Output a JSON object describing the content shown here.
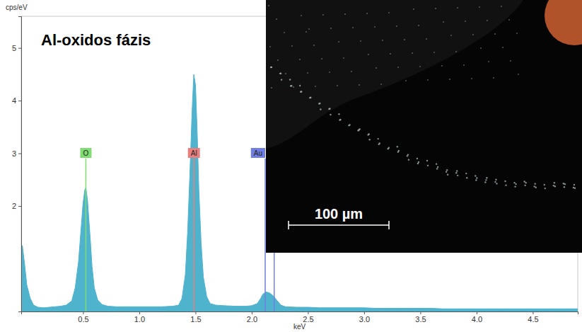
{
  "chart_data": {
    "type": "area",
    "title": "Al-oxidos fázis",
    "y_label": "cps/eV",
    "x_label": "keV",
    "color": "#4fb3ce",
    "grid": false,
    "xlim": [
      -0.05,
      4.9
    ],
    "ylim": [
      0,
      5.6
    ],
    "xticks": [
      0.5,
      {
        "value": 1,
        "label": "1.0"
      },
      1.5,
      {
        "value": 2,
        "label": "2.0"
      },
      2.5,
      {
        "value": 3,
        "label": "3.0"
      },
      3.5,
      {
        "value": 4,
        "label": "4.0"
      },
      4.5
    ],
    "yticks": [
      2,
      3,
      4,
      5
    ],
    "x": [
      -0.04,
      -0.02,
      0.0,
      0.03,
      0.06,
      0.1,
      0.15,
      0.2,
      0.25,
      0.3,
      0.35,
      0.4,
      0.43,
      0.46,
      0.48,
      0.5,
      0.515,
      0.525,
      0.54,
      0.56,
      0.58,
      0.6,
      0.63,
      0.67,
      0.72,
      0.8,
      0.9,
      1.0,
      1.1,
      1.2,
      1.3,
      1.35,
      1.38,
      1.41,
      1.43,
      1.45,
      1.47,
      1.485,
      1.5,
      1.515,
      1.53,
      1.55,
      1.57,
      1.6,
      1.63,
      1.68,
      1.75,
      1.85,
      1.95,
      2.0,
      2.05,
      2.08,
      2.1,
      2.13,
      2.16,
      2.19,
      2.22,
      2.26,
      2.3,
      2.4,
      2.5,
      2.6,
      2.7,
      2.8,
      2.9,
      3.0,
      3.1,
      3.2,
      3.3,
      3.4,
      3.5,
      3.6,
      3.7,
      3.8,
      3.9,
      4.0,
      4.1,
      4.2,
      4.3,
      4.4,
      4.5,
      4.6,
      4.7,
      4.8,
      4.9
    ],
    "values": [
      1.25,
      0.9,
      0.5,
      0.25,
      0.12,
      0.08,
      0.07,
      0.08,
      0.09,
      0.1,
      0.12,
      0.2,
      0.45,
      0.95,
      1.5,
      2.05,
      2.3,
      2.35,
      2.1,
      1.5,
      0.85,
      0.45,
      0.22,
      0.13,
      0.1,
      0.09,
      0.09,
      0.09,
      0.09,
      0.09,
      0.1,
      0.12,
      0.25,
      0.7,
      1.5,
      2.6,
      3.8,
      4.5,
      4.3,
      3.4,
      2.3,
      1.3,
      0.65,
      0.28,
      0.15,
      0.12,
      0.11,
      0.1,
      0.1,
      0.11,
      0.15,
      0.25,
      0.33,
      0.37,
      0.35,
      0.3,
      0.22,
      0.12,
      0.09,
      0.08,
      0.08,
      0.07,
      0.07,
      0.07,
      0.07,
      0.07,
      0.06,
      0.06,
      0.06,
      0.06,
      0.06,
      0.06,
      0.05,
      0.05,
      0.05,
      0.05,
      0.05,
      0.05,
      0.05,
      0.05,
      0.05,
      0.05,
      0.05,
      0.05,
      0.05
    ],
    "annotations": [
      {
        "label": "O",
        "lines": [
          0.525
        ],
        "color": "#7fdc70"
      },
      {
        "label": "Al",
        "lines": [
          1.486
        ],
        "color": "#e87f7f"
      },
      {
        "label": "Au",
        "lines": [
          2.12,
          2.2
        ],
        "color": "#6f7ee0"
      }
    ],
    "inset": {
      "scale_bar": "100 µm"
    }
  }
}
